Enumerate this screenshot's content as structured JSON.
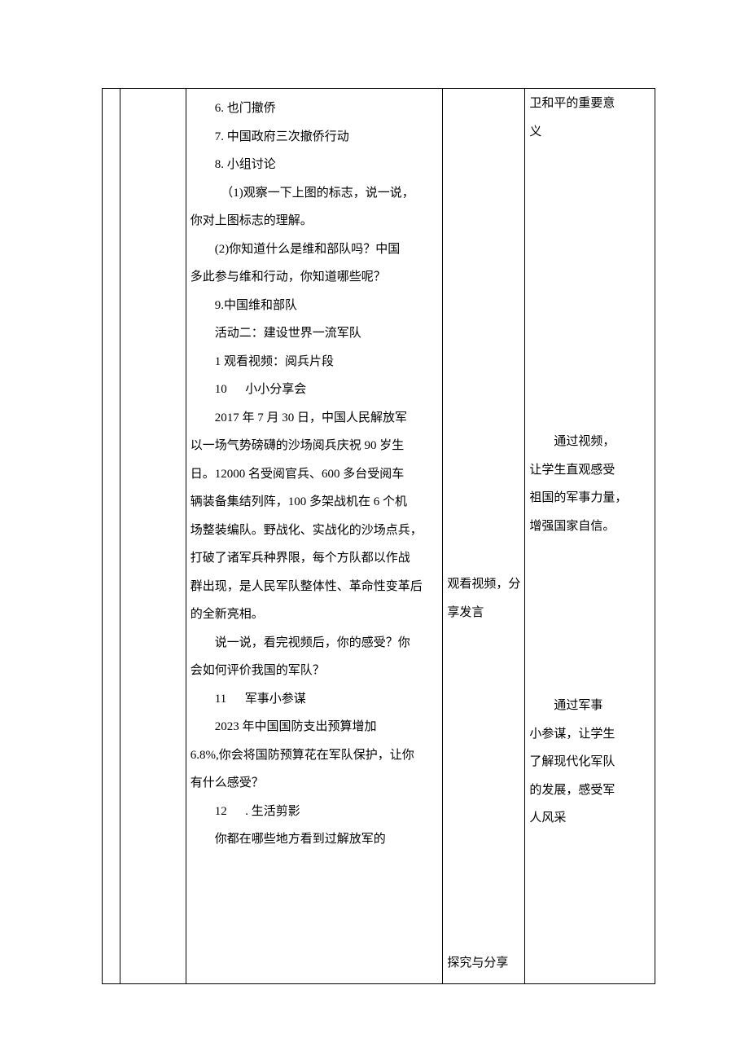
{
  "col3": {
    "p1": "6. 也门撤侨",
    "p2": "7. 中国政府三次撤侨行动",
    "p3": "8. 小组讨论",
    "p4": "（1)观察一下上图的标志，说一说，",
    "p4b": "你对上图标志的理解。",
    "p5": "(2)你知道什么是维和部队吗？中国",
    "p5b": "多此参与维和行动，你知道哪些呢？",
    "p6": "9.中国维和部队",
    "p7": "活动二：建设世界一流军队",
    "p8": "1 观看视频：阅兵片段",
    "p9a": "10",
    "p9b": "小小分享会",
    "p10": "2017 年 7 月 30 日，中国人民解放军",
    "p10b": "以一场气势磅礴的沙场阅兵庆祝 90 岁生",
    "p10c": "日。12000 名受阅官兵、600 多台受阅车",
    "p10d": "辆装备集结列阵，100 多架战机在 6 个机",
    "p10e": "场整装编队。野战化、实战化的沙场点兵，",
    "p10f": "打破了诸军兵种界限，每个方队都以作战",
    "p10g": "群出现，是人民军队整体性、革命性变革后",
    "p10h": "的全新亮相。",
    "p11": "说一说，看完视频后，你的感受？你",
    "p11b": "会如何评价我国的军队？",
    "p12a": "11",
    "p12b": "军事小参谋",
    "p13": "2023 年中国国防支出预算增加",
    "p13b": "6.8%,你会将国防预算花在军队保护，让你",
    "p13c": "有什么感受？",
    "p14a": "12",
    "p14b": ". 生活剪影",
    "p15": "你都在哪些地方看到过解放军的"
  },
  "col4": {
    "b1a": "观看视频，分",
    "b1b": "享发言",
    "b2": "探究与分享"
  },
  "col5": {
    "a1": "卫和平的重要意",
    "a2": "义",
    "b1": "通过视频，",
    "b2": "让学生直观感受",
    "b3": "祖国的军事力量，",
    "b4": "增强国家自信。",
    "c1": "通过军事",
    "c2": "小参谋，让学生",
    "c3": "了解现代化军队",
    "c4": "的发展，感受军",
    "c5": "人风采"
  }
}
